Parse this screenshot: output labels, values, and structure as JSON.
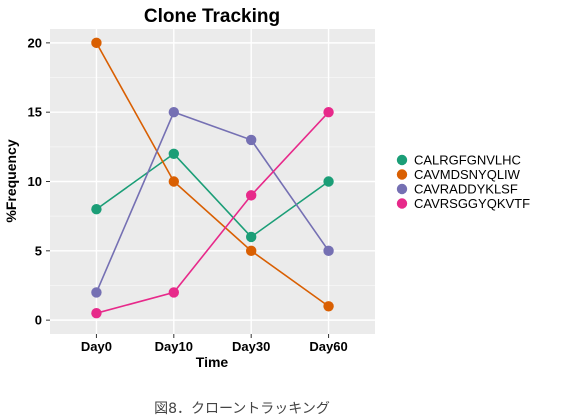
{
  "chart_data": {
    "type": "line",
    "title": "Clone Tracking",
    "xlabel": "Time",
    "ylabel": "%Frequency",
    "categories": [
      "Day0",
      "Day10",
      "Day30",
      "Day60"
    ],
    "ylim": [
      -1,
      21
    ],
    "yticks": [
      0,
      5,
      10,
      15,
      20
    ],
    "grid": true,
    "legend_position": "right",
    "series": [
      {
        "name": "CALRGFGNVLHC",
        "color": "#1b9e77",
        "values": [
          8,
          12,
          6,
          10
        ]
      },
      {
        "name": "CAVMDSNYQLIW",
        "color": "#d95f02",
        "values": [
          20,
          10,
          5,
          1
        ]
      },
      {
        "name": "CAVRADDYKLSF",
        "color": "#7570b3",
        "values": [
          2,
          15,
          13,
          5
        ]
      },
      {
        "name": "CAVRSGGYQKVTF",
        "color": "#e7298a",
        "values": [
          0.5,
          2,
          9,
          15
        ]
      }
    ]
  },
  "caption": "図8．クローントラッキング",
  "colors": {
    "panel_background": "#ebebeb",
    "grid_major": "#ffffff",
    "grid_minor": "#f7f7f7"
  }
}
